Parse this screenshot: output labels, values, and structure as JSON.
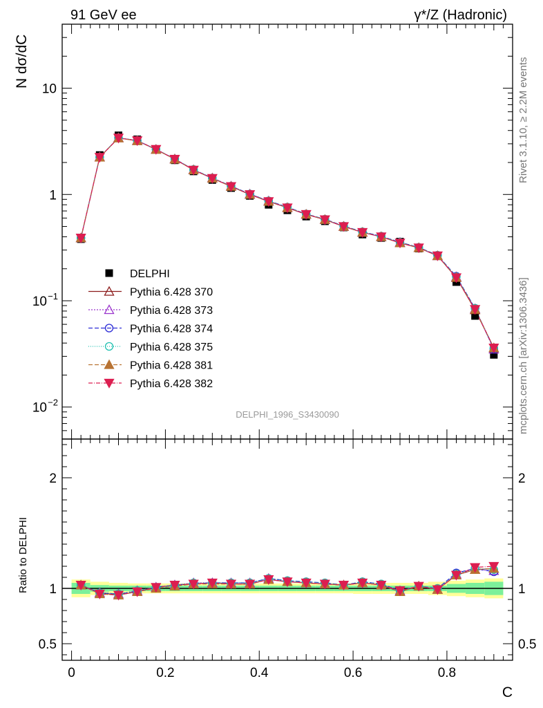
{
  "header": {
    "left": "91 GeV ee",
    "right": "γ*/Z (Hadronic)"
  },
  "side_labels": {
    "rivet": "Rivet 3.1.10, ≥ 2.2M events",
    "mcplots": "mcplots.cern.ch [arXiv:1306.3436]"
  },
  "analysis_label": "DELPHI_1996_S3430090",
  "chart_data": [
    {
      "type": "scatter",
      "panel": "main",
      "ylabel": "N dσ/dC",
      "yscale": "log",
      "ylim": [
        0.005,
        40
      ],
      "y_ticks": [
        {
          "value": 10,
          "base": "10",
          "exp": ""
        },
        {
          "value": 1,
          "base": "1",
          "exp": ""
        },
        {
          "value": 0.1,
          "base": "10",
          "exp": "−1"
        },
        {
          "value": 0.01,
          "base": "10",
          "exp": "−2"
        }
      ],
      "x": [
        0.02,
        0.06,
        0.1,
        0.14,
        0.18,
        0.22,
        0.26,
        0.3,
        0.34,
        0.38,
        0.42,
        0.46,
        0.5,
        0.54,
        0.58,
        0.62,
        0.66,
        0.7,
        0.74,
        0.78,
        0.82,
        0.86,
        0.9
      ],
      "data": {
        "name": "DELPHI",
        "color": "#000000",
        "values": [
          0.38,
          2.35,
          3.6,
          3.3,
          2.65,
          2.1,
          1.65,
          1.37,
          1.15,
          0.97,
          0.8,
          0.71,
          0.62,
          0.56,
          0.49,
          0.42,
          0.39,
          0.36,
          0.31,
          0.265,
          0.15,
          0.072,
          0.031
        ]
      },
      "series": [
        {
          "name": "Pythia 6.428 370",
          "color": "#8b1a1a",
          "dash": "",
          "marker": "triangle-up-open",
          "values": [
            0.39,
            2.25,
            3.4,
            3.2,
            2.65,
            2.15,
            1.7,
            1.42,
            1.19,
            1.0,
            0.86,
            0.75,
            0.65,
            0.58,
            0.5,
            0.44,
            0.4,
            0.35,
            0.315,
            0.265,
            0.165,
            0.082,
            0.036
          ]
        },
        {
          "name": "Pythia 6.428 373",
          "color": "#9932cc",
          "dash": "2,2",
          "marker": "triangle-up-open",
          "values": [
            0.39,
            2.25,
            3.42,
            3.22,
            2.66,
            2.16,
            1.71,
            1.43,
            1.2,
            1.01,
            0.87,
            0.75,
            0.65,
            0.58,
            0.5,
            0.44,
            0.4,
            0.355,
            0.315,
            0.265,
            0.168,
            0.084,
            0.035
          ]
        },
        {
          "name": "Pythia 6.428 374",
          "color": "#2b2bd6",
          "dash": "6,3",
          "marker": "circle-open",
          "values": [
            0.39,
            2.24,
            3.41,
            3.21,
            2.66,
            2.16,
            1.71,
            1.43,
            1.2,
            1.01,
            0.87,
            0.76,
            0.655,
            0.585,
            0.505,
            0.445,
            0.405,
            0.355,
            0.318,
            0.268,
            0.17,
            0.085,
            0.035
          ]
        },
        {
          "name": "Pythia 6.428 375",
          "color": "#20c0b0",
          "dash": "1,2",
          "marker": "circle-open",
          "values": [
            0.39,
            2.25,
            3.42,
            3.22,
            2.67,
            2.16,
            1.72,
            1.43,
            1.2,
            1.01,
            0.87,
            0.76,
            0.655,
            0.585,
            0.505,
            0.445,
            0.405,
            0.355,
            0.318,
            0.268,
            0.168,
            0.085,
            0.036
          ]
        },
        {
          "name": "Pythia 6.428 381",
          "color": "#b87333",
          "dash": "6,3",
          "marker": "triangle-up-filled",
          "values": [
            0.39,
            2.24,
            3.4,
            3.2,
            2.65,
            2.15,
            1.7,
            1.42,
            1.19,
            1.0,
            0.86,
            0.75,
            0.65,
            0.58,
            0.5,
            0.44,
            0.4,
            0.35,
            0.315,
            0.265,
            0.166,
            0.083,
            0.036
          ]
        },
        {
          "name": "Pythia 6.428 382",
          "color": "#dc1e50",
          "dash": "6,2,1,2",
          "marker": "triangle-down-filled",
          "values": [
            0.39,
            2.24,
            3.4,
            3.21,
            2.66,
            2.15,
            1.7,
            1.42,
            1.19,
            1.0,
            0.86,
            0.75,
            0.65,
            0.58,
            0.5,
            0.44,
            0.4,
            0.35,
            0.315,
            0.265,
            0.165,
            0.083,
            0.036
          ]
        }
      ]
    },
    {
      "type": "scatter",
      "panel": "ratio",
      "ylabel": "Ratio to DELPHI",
      "xlabel": "C",
      "ylim": [
        0.35,
        2.35
      ],
      "xlim": [
        -0.02,
        0.94
      ],
      "x_ticks": [
        0,
        0.2,
        0.4,
        0.6,
        0.8
      ],
      "x_tick_labels": [
        "0",
        "0.2",
        "0.4",
        "0.6",
        "0.8"
      ],
      "y_ticks": [
        0.5,
        1,
        2
      ],
      "y_tick_labels": [
        "0.5",
        "1",
        "2"
      ],
      "band_stat": [
        0.05,
        0.03,
        0.025,
        0.025,
        0.025,
        0.025,
        0.025,
        0.025,
        0.025,
        0.025,
        0.025,
        0.025,
        0.025,
        0.025,
        0.025,
        0.025,
        0.025,
        0.025,
        0.025,
        0.025,
        0.04,
        0.05,
        0.06
      ],
      "band_total": [
        0.08,
        0.06,
        0.05,
        0.045,
        0.045,
        0.045,
        0.045,
        0.045,
        0.045,
        0.045,
        0.045,
        0.045,
        0.045,
        0.045,
        0.045,
        0.05,
        0.05,
        0.05,
        0.05,
        0.06,
        0.07,
        0.08,
        0.09
      ],
      "band_colors": {
        "stat": "#7cf09a",
        "total": "#ffff99"
      },
      "series": [
        {
          "name": "Pythia 6.428 370",
          "values": [
            1.03,
            0.96,
            0.94,
            0.97,
            1.01,
            1.03,
            1.04,
            1.05,
            1.04,
            1.04,
            1.08,
            1.06,
            1.05,
            1.04,
            1.03,
            1.05,
            1.03,
            0.97,
            1.02,
            0.99,
            1.12,
            1.17,
            1.18
          ]
        },
        {
          "name": "Pythia 6.428 373",
          "values": [
            1.03,
            0.96,
            0.95,
            0.98,
            1.01,
            1.03,
            1.05,
            1.05,
            1.05,
            1.05,
            1.09,
            1.06,
            1.05,
            1.04,
            1.03,
            1.05,
            1.03,
            0.98,
            1.02,
            0.99,
            1.13,
            1.17,
            1.16
          ]
        },
        {
          "name": "Pythia 6.428 374",
          "values": [
            1.03,
            0.96,
            0.95,
            0.97,
            1.01,
            1.03,
            1.04,
            1.05,
            1.05,
            1.05,
            1.09,
            1.07,
            1.06,
            1.05,
            1.03,
            1.06,
            1.04,
            0.98,
            1.02,
            1.0,
            1.14,
            1.18,
            1.15
          ]
        },
        {
          "name": "Pythia 6.428 375",
          "values": [
            1.03,
            0.96,
            0.95,
            0.98,
            1.01,
            1.03,
            1.05,
            1.05,
            1.05,
            1.05,
            1.09,
            1.07,
            1.06,
            1.05,
            1.03,
            1.06,
            1.04,
            0.98,
            1.02,
            1.0,
            1.13,
            1.18,
            1.17
          ]
        },
        {
          "name": "Pythia 6.428 381",
          "values": [
            1.03,
            0.95,
            0.94,
            0.97,
            1.0,
            1.02,
            1.04,
            1.04,
            1.04,
            1.04,
            1.08,
            1.06,
            1.05,
            1.04,
            1.03,
            1.05,
            1.03,
            0.97,
            1.02,
            0.99,
            1.12,
            1.17,
            1.18
          ]
        },
        {
          "name": "Pythia 6.428 382",
          "values": [
            1.03,
            0.95,
            0.94,
            0.97,
            1.01,
            1.03,
            1.04,
            1.05,
            1.04,
            1.04,
            1.08,
            1.06,
            1.05,
            1.04,
            1.03,
            1.05,
            1.03,
            0.98,
            1.02,
            0.99,
            1.12,
            1.19,
            1.2
          ]
        }
      ]
    }
  ]
}
